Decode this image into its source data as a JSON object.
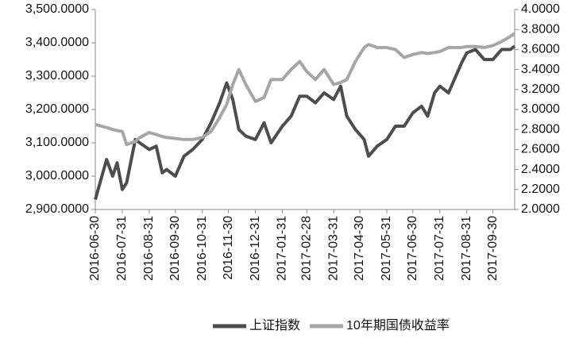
{
  "chart_data": {
    "type": "line",
    "x": [
      "2016-06-30",
      "2016-07-13",
      "2016-07-20",
      "2016-07-25",
      "2016-07-31",
      "2016-08-05",
      "2016-08-15",
      "2016-08-20",
      "2016-08-31",
      "2016-09-08",
      "2016-09-15",
      "2016-09-20",
      "2016-09-30",
      "2016-10-10",
      "2016-10-20",
      "2016-10-31",
      "2016-11-10",
      "2016-11-20",
      "2016-11-28",
      "2016-12-05",
      "2016-12-12",
      "2016-12-20",
      "2016-12-31",
      "2017-01-10",
      "2017-01-18",
      "2017-01-31",
      "2017-02-10",
      "2017-02-20",
      "2017-02-28",
      "2017-03-10",
      "2017-03-20",
      "2017-03-31",
      "2017-04-08",
      "2017-04-15",
      "2017-04-25",
      "2017-05-05",
      "2017-05-10",
      "2017-05-20",
      "2017-05-31",
      "2017-06-10",
      "2017-06-20",
      "2017-06-30",
      "2017-07-10",
      "2017-07-17",
      "2017-07-25",
      "2017-07-31",
      "2017-08-10",
      "2017-08-15",
      "2017-08-25",
      "2017-08-31",
      "2017-09-10",
      "2017-09-20",
      "2017-09-30",
      "2017-10-10",
      "2017-10-20",
      "2017-10-25"
    ],
    "series": [
      {
        "name": "上证指数",
        "color": "#4d4d4d",
        "values": [
          2930,
          3050,
          3000,
          3040,
          2960,
          2980,
          3110,
          3100,
          3080,
          3090,
          3010,
          3020,
          3000,
          3060,
          3080,
          3110,
          3160,
          3220,
          3280,
          3230,
          3140,
          3120,
          3110,
          3160,
          3100,
          3150,
          3180,
          3240,
          3240,
          3220,
          3250,
          3230,
          3270,
          3180,
          3140,
          3110,
          3060,
          3090,
          3110,
          3150,
          3150,
          3190,
          3210,
          3180,
          3250,
          3270,
          3250,
          3280,
          3340,
          3370,
          3380,
          3350,
          3350,
          3380,
          3380,
          3390
        ]
      },
      {
        "name": "10年期国债收益率",
        "color": "#a6a6a6",
        "axis": "y2",
        "values": [
          2.85,
          2.82,
          2.8,
          2.79,
          2.78,
          2.65,
          2.68,
          2.72,
          2.77,
          2.75,
          2.73,
          2.72,
          2.71,
          2.7,
          2.7,
          2.72,
          2.78,
          2.92,
          3.05,
          3.25,
          3.4,
          3.25,
          3.08,
          3.12,
          3.3,
          3.3,
          3.4,
          3.48,
          3.38,
          3.3,
          3.4,
          3.25,
          3.27,
          3.3,
          3.48,
          3.62,
          3.65,
          3.62,
          3.62,
          3.6,
          3.52,
          3.55,
          3.57,
          3.56,
          3.57,
          3.58,
          3.62,
          3.62,
          3.62,
          3.63,
          3.63,
          3.62,
          3.64,
          3.68,
          3.73,
          3.76
        ]
      }
    ],
    "xlim": [
      "2016-06-30",
      "2017-10-25"
    ],
    "xticks": [
      "2016-06-30",
      "2016-07-31",
      "2016-08-31",
      "2016-09-30",
      "2016-10-31",
      "2016-11-30",
      "2016-12-31",
      "2017-01-31",
      "2017-02-28",
      "2017-03-31",
      "2017-04-30",
      "2017-05-31",
      "2017-06-30",
      "2017-07-31",
      "2017-08-31",
      "2017-09-30"
    ],
    "ylim": [
      2900,
      3500
    ],
    "yticks": [
      {
        "value": 2900,
        "label": "2,900.0000"
      },
      {
        "value": 3000,
        "label": "3,000.0000"
      },
      {
        "value": 3100,
        "label": "3,100.0000"
      },
      {
        "value": 3200,
        "label": "3,200.0000"
      },
      {
        "value": 3300,
        "label": "3,300.0000"
      },
      {
        "value": 3400,
        "label": "3,400.0000"
      },
      {
        "value": 3500,
        "label": "3,500.0000"
      }
    ],
    "y2lim": [
      2,
      4
    ],
    "y2ticks": [
      {
        "value": 2,
        "label": "2.0000"
      },
      {
        "value": 2.2,
        "label": "2.2000"
      },
      {
        "value": 2.4,
        "label": "2.4000"
      },
      {
        "value": 2.6,
        "label": "2.6000"
      },
      {
        "value": 2.8,
        "label": "2.8000"
      },
      {
        "value": 3,
        "label": "3.0000"
      },
      {
        "value": 3.2,
        "label": "3.2000"
      },
      {
        "value": 3.4,
        "label": "3.4000"
      },
      {
        "value": 3.6,
        "label": "3.6000"
      },
      {
        "value": 3.8,
        "label": "3.8000"
      },
      {
        "value": 4,
        "label": "4.0000"
      }
    ],
    "legend": "bottom",
    "grid": false
  }
}
